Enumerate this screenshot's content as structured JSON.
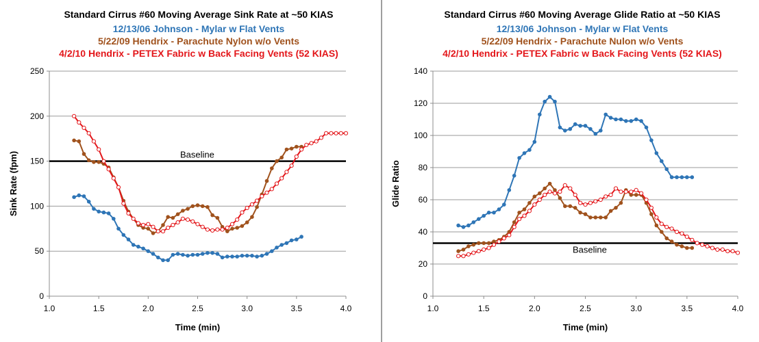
{
  "chart_data": [
    {
      "type": "line",
      "title": "Standard Cirrus #60 Moving Average Sink Rate at ~50 KIAS",
      "subtitles": [
        {
          "text": "12/13/06 Johnson - Mylar w Flat Vents",
          "color": "#2e75b6"
        },
        {
          "text": "5/22/09 Hendrix - Parachute Nylon w/o Vents",
          "color": "#a0521d"
        },
        {
          "text": "4/2/10 Hendrix - PETEX Fabric w Back Facing Vents (52 KIAS)",
          "color": "#e3161a"
        }
      ],
      "xlabel": "Time (min)",
      "ylabel": "Sink Rate (fpm)",
      "xlim": [
        1.0,
        4.0
      ],
      "ylim": [
        0,
        250
      ],
      "xticks": [
        1.0,
        1.5,
        2.0,
        2.5,
        3.0,
        3.5,
        4.0
      ],
      "xtick_labels": [
        "1.0",
        "1.5",
        "2.0",
        "2.5",
        "3.0",
        "3.5",
        "4.0"
      ],
      "yticks": [
        0,
        50,
        100,
        150,
        200,
        250
      ],
      "ytick_labels": [
        "0",
        "50",
        "100",
        "150",
        "200",
        "250"
      ],
      "grid": "horizontal",
      "baseline": {
        "label": "Baseline",
        "y": 150
      },
      "series": [
        {
          "color": "#2e75b6",
          "marker": "filled",
          "x": [
            1.25,
            1.3,
            1.35,
            1.4,
            1.45,
            1.5,
            1.55,
            1.6,
            1.65,
            1.7,
            1.75,
            1.8,
            1.85,
            1.9,
            1.95,
            2.0,
            2.05,
            2.1,
            2.15,
            2.2,
            2.25,
            2.3,
            2.35,
            2.4,
            2.45,
            2.5,
            2.55,
            2.6,
            2.65,
            2.7,
            2.75,
            2.8,
            2.85,
            2.9,
            2.95,
            3.0,
            3.05,
            3.1,
            3.15,
            3.2,
            3.25,
            3.3,
            3.35,
            3.4,
            3.45,
            3.5,
            3.55
          ],
          "y": [
            110,
            112,
            111,
            105,
            97,
            94,
            93,
            92,
            86,
            75,
            68,
            63,
            57,
            55,
            53,
            50,
            47,
            43,
            40,
            40,
            46,
            47,
            46,
            45,
            46,
            46,
            47,
            48,
            48,
            47,
            43,
            44,
            44,
            44,
            45,
            45,
            45,
            44,
            45,
            47,
            50,
            54,
            57,
            59,
            62,
            63,
            66
          ]
        },
        {
          "color": "#a0521d",
          "marker": "filled",
          "x": [
            1.25,
            1.3,
            1.35,
            1.4,
            1.45,
            1.5,
            1.55,
            1.6,
            1.65,
            1.7,
            1.75,
            1.8,
            1.85,
            1.9,
            1.95,
            2.0,
            2.05,
            2.1,
            2.15,
            2.2,
            2.25,
            2.3,
            2.35,
            2.4,
            2.45,
            2.5,
            2.55,
            2.6,
            2.65,
            2.7,
            2.75,
            2.8,
            2.85,
            2.9,
            2.95,
            3.0,
            3.05,
            3.1,
            3.15,
            3.2,
            3.25,
            3.3,
            3.35,
            3.4,
            3.45,
            3.5,
            3.55
          ],
          "y": [
            173,
            172,
            158,
            151,
            149,
            149,
            147,
            143,
            132,
            121,
            106,
            94,
            86,
            79,
            76,
            75,
            70,
            72,
            79,
            88,
            87,
            91,
            95,
            97,
            100,
            101,
            100,
            99,
            90,
            87,
            77,
            72,
            75,
            76,
            78,
            82,
            88,
            99,
            113,
            128,
            142,
            150,
            154,
            163,
            164,
            166,
            166
          ]
        },
        {
          "color": "#e3161a",
          "marker": "hollow",
          "x": [
            1.25,
            1.3,
            1.35,
            1.4,
            1.45,
            1.5,
            1.55,
            1.6,
            1.65,
            1.7,
            1.75,
            1.8,
            1.85,
            1.9,
            1.95,
            2.0,
            2.05,
            2.1,
            2.15,
            2.2,
            2.25,
            2.3,
            2.35,
            2.4,
            2.45,
            2.5,
            2.55,
            2.6,
            2.65,
            2.7,
            2.75,
            2.8,
            2.85,
            2.9,
            2.95,
            3.0,
            3.05,
            3.1,
            3.15,
            3.2,
            3.25,
            3.3,
            3.35,
            3.4,
            3.45,
            3.5,
            3.55,
            3.6,
            3.65,
            3.7,
            3.75,
            3.8,
            3.85,
            3.9,
            3.95,
            4.0
          ],
          "y": [
            200,
            193,
            187,
            181,
            172,
            163,
            150,
            141,
            131,
            121,
            103,
            92,
            86,
            81,
            79,
            80,
            77,
            72,
            72,
            76,
            79,
            82,
            86,
            85,
            83,
            80,
            77,
            74,
            73,
            74,
            74,
            76,
            80,
            85,
            93,
            98,
            102,
            106,
            111,
            115,
            119,
            125,
            131,
            138,
            145,
            155,
            163,
            168,
            170,
            172,
            176,
            181,
            181,
            181,
            181,
            181
          ]
        }
      ]
    },
    {
      "type": "line",
      "title": "Standard Cirrus #60 Moving Average Glide Ratio at ~50 KIAS",
      "subtitles": [
        {
          "text": "12/13/06 Johnson - Mylar w Flat Vents",
          "color": "#2e75b6"
        },
        {
          "text": "5/22/09 Hendrix - Parachute Nulon w/o Vents",
          "color": "#a0521d"
        },
        {
          "text": "4/2/10 Hendrix - PETEX Fabric w Back Facing Vents (52 KIAS)",
          "color": "#e3161a"
        }
      ],
      "xlabel": "Time (min)",
      "ylabel": "Glide Ratio",
      "xlim": [
        1.0,
        4.0
      ],
      "ylim": [
        0,
        140
      ],
      "xticks": [
        1.0,
        1.5,
        2.0,
        2.5,
        3.0,
        3.5,
        4.0
      ],
      "xtick_labels": [
        "1.0",
        "1.5",
        "2.0",
        "2.5",
        "3.0",
        "3.5",
        "4.0"
      ],
      "yticks": [
        0,
        20,
        40,
        60,
        80,
        100,
        120,
        140
      ],
      "ytick_labels": [
        "0",
        "20",
        "40",
        "60",
        "80",
        "100",
        "120",
        "140"
      ],
      "grid": "horizontal",
      "baseline": {
        "label": "Baseline",
        "y": 33
      },
      "series": [
        {
          "color": "#2e75b6",
          "marker": "filled",
          "x": [
            1.25,
            1.3,
            1.35,
            1.4,
            1.45,
            1.5,
            1.55,
            1.6,
            1.65,
            1.7,
            1.75,
            1.8,
            1.85,
            1.9,
            1.95,
            2.0,
            2.05,
            2.1,
            2.15,
            2.2,
            2.25,
            2.3,
            2.35,
            2.4,
            2.45,
            2.5,
            2.55,
            2.6,
            2.65,
            2.7,
            2.75,
            2.8,
            2.85,
            2.9,
            2.95,
            3.0,
            3.05,
            3.1,
            3.15,
            3.2,
            3.25,
            3.3,
            3.35,
            3.4,
            3.45,
            3.5,
            3.55
          ],
          "y": [
            44,
            43,
            44,
            46,
            48,
            50,
            52,
            52,
            54,
            57,
            66,
            75,
            86,
            89,
            91,
            96,
            113,
            121,
            124,
            121,
            105,
            103,
            104,
            107,
            106,
            106,
            104,
            101,
            103,
            113,
            111,
            110,
            110,
            109,
            109,
            110,
            109,
            105,
            97,
            89,
            84,
            79,
            74,
            74,
            74,
            74,
            74
          ]
        },
        {
          "color": "#a0521d",
          "marker": "filled",
          "x": [
            1.25,
            1.3,
            1.35,
            1.4,
            1.45,
            1.5,
            1.55,
            1.6,
            1.65,
            1.7,
            1.75,
            1.8,
            1.85,
            1.9,
            1.95,
            2.0,
            2.05,
            2.1,
            2.15,
            2.2,
            2.25,
            2.3,
            2.35,
            2.4,
            2.45,
            2.5,
            2.55,
            2.6,
            2.65,
            2.7,
            2.75,
            2.8,
            2.85,
            2.9,
            2.95,
            3.0,
            3.05,
            3.1,
            3.15,
            3.2,
            3.25,
            3.3,
            3.35,
            3.4,
            3.45,
            3.5,
            3.55
          ],
          "y": [
            28,
            29,
            31,
            32,
            33,
            33,
            33,
            34,
            35,
            37,
            40,
            46,
            52,
            54,
            58,
            62,
            64,
            67,
            70,
            66,
            61,
            56,
            56,
            55,
            52,
            51,
            49,
            49,
            49,
            49,
            53,
            55,
            58,
            66,
            63,
            63,
            63,
            58,
            51,
            44,
            40,
            36,
            34,
            32,
            31,
            30,
            30
          ]
        },
        {
          "color": "#e3161a",
          "marker": "hollow",
          "x": [
            1.25,
            1.3,
            1.35,
            1.4,
            1.45,
            1.5,
            1.55,
            1.6,
            1.65,
            1.7,
            1.75,
            1.8,
            1.85,
            1.9,
            1.95,
            2.0,
            2.05,
            2.1,
            2.15,
            2.2,
            2.25,
            2.3,
            2.35,
            2.4,
            2.45,
            2.5,
            2.55,
            2.6,
            2.65,
            2.7,
            2.75,
            2.8,
            2.85,
            2.9,
            2.95,
            3.0,
            3.05,
            3.1,
            3.15,
            3.2,
            3.25,
            3.3,
            3.35,
            3.4,
            3.45,
            3.5,
            3.55,
            3.6,
            3.65,
            3.7,
            3.75,
            3.8,
            3.85,
            3.9,
            3.95,
            4.0
          ],
          "y": [
            25,
            25,
            26,
            27,
            28,
            29,
            30,
            32,
            34,
            36,
            38,
            43,
            48,
            50,
            53,
            57,
            60,
            63,
            65,
            64,
            65,
            69,
            67,
            63,
            58,
            57,
            58,
            59,
            60,
            62,
            63,
            67,
            65,
            65,
            65,
            66,
            64,
            60,
            55,
            49,
            45,
            43,
            42,
            40,
            39,
            37,
            35,
            33,
            32,
            31,
            30,
            29,
            29,
            28,
            28,
            27
          ]
        }
      ]
    }
  ]
}
